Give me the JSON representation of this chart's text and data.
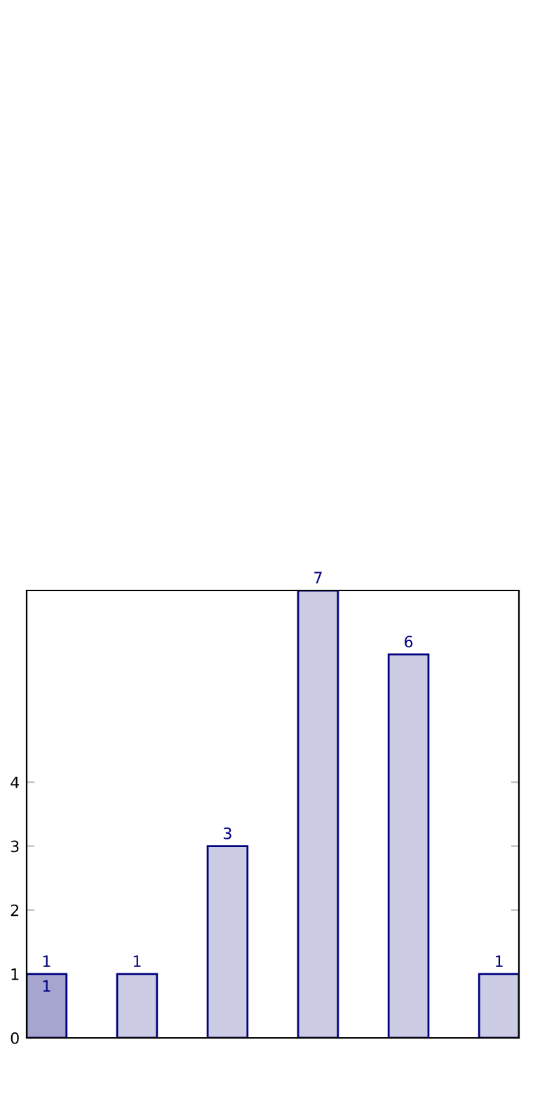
{
  "chart_data": {
    "type": "bar",
    "categories": [
      null,
      null,
      null,
      null,
      null,
      null
    ],
    "values": [
      1,
      1,
      3,
      7,
      6,
      1
    ],
    "colors": [
      "#a5a5cf",
      "#cccce4",
      "#cccce4",
      "#cccce4",
      "#cccce4",
      "#cccce4"
    ],
    "annotations": [
      {
        "text": "1",
        "y": 1
      }
    ],
    "ylim": [
      0,
      7
    ],
    "yticks": [
      0,
      1,
      2,
      3,
      4
    ],
    "tick_labels": "y",
    "data_labels": true,
    "grid": false,
    "legend": false
  }
}
